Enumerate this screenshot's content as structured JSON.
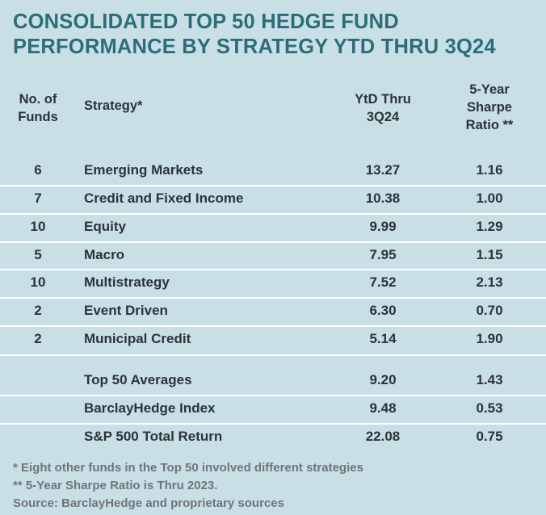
{
  "title": {
    "line1": "CONSOLIDATED TOP 50 HEDGE FUND",
    "line2": "PERFORMANCE BY STRATEGY YTD THRU 3Q24"
  },
  "headers": {
    "count": [
      "No. of",
      "Funds"
    ],
    "strategy": "Strategy*",
    "ytd": [
      "YtD Thru",
      "3Q24"
    ],
    "sharpe": [
      "5-Year",
      "Sharpe",
      "Ratio **"
    ]
  },
  "rows": [
    {
      "count": "6",
      "strategy": "Emerging Markets",
      "ytd": "13.27",
      "sharpe": "1.16"
    },
    {
      "count": "7",
      "strategy": "Credit and Fixed Income",
      "ytd": "10.38",
      "sharpe": "1.00"
    },
    {
      "count": "10",
      "strategy": "Equity",
      "ytd": "9.99",
      "sharpe": "1.29"
    },
    {
      "count": "5",
      "strategy": "Macro",
      "ytd": "7.95",
      "sharpe": "1.15"
    },
    {
      "count": "10",
      "strategy": "Multistrategy",
      "ytd": "7.52",
      "sharpe": "2.13"
    },
    {
      "count": "2",
      "strategy": "Event Driven",
      "ytd": "6.30",
      "sharpe": "0.70"
    },
    {
      "count": "2",
      "strategy": "Municipal Credit",
      "ytd": "5.14",
      "sharpe": "1.90"
    }
  ],
  "summary_rows": [
    {
      "strategy": "Top 50 Averages",
      "ytd": "9.20",
      "sharpe": "1.43"
    },
    {
      "strategy": "BarclayHedge Index",
      "ytd": "9.48",
      "sharpe": "0.53"
    },
    {
      "strategy": "S&P 500 Total Return",
      "ytd": "22.08",
      "sharpe": "0.75"
    }
  ],
  "footnotes": [
    "* Eight other funds in the Top 50 involved different strategies",
    "** 5-Year Sharpe Ratio is Thru 2023.",
    "Source: BarclayHedge and proprietary sources"
  ],
  "colors": {
    "background": "#c9dfe6",
    "title": "#2d6d7a",
    "text": "#2a3439",
    "footnote": "#6e7579",
    "rule": "#ffffff"
  }
}
